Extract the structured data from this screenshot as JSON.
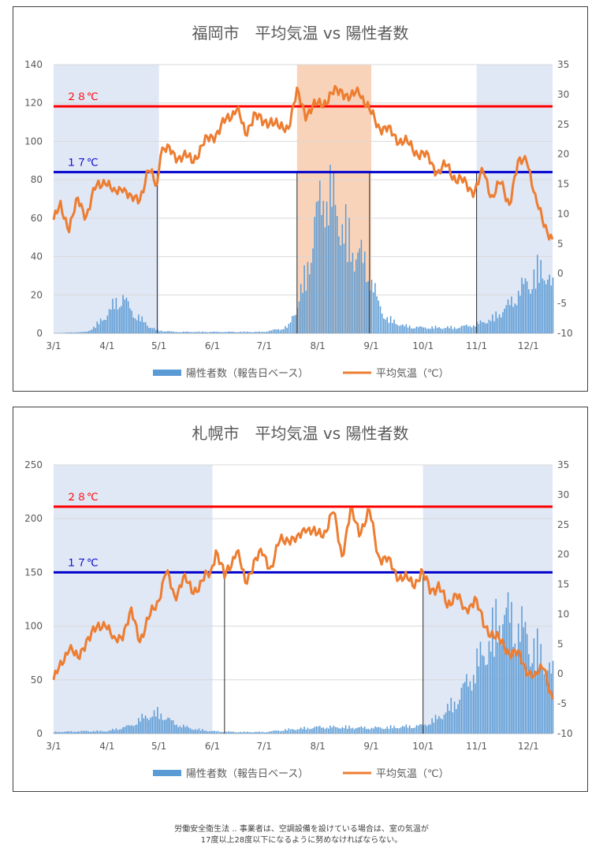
{
  "chart_data": [
    {
      "type": "bar+line",
      "title": "福岡市　平均気温 vs 陽性者数",
      "x_ticks": [
        "3/1",
        "4/1",
        "5/1",
        "6/1",
        "7/1",
        "8/1",
        "9/1",
        "10/1",
        "11/1",
        "12/1"
      ],
      "y_left": {
        "min": 0,
        "max": 140,
        "step": 20
      },
      "y_right": {
        "min": -10,
        "max": 35,
        "step": 5
      },
      "legend": [
        {
          "label": "陽性者数（報告日ベース）",
          "color": "#5b9bd5",
          "kind": "bar"
        },
        {
          "label": "平均気温（℃）",
          "color": "#ed7d31",
          "kind": "line"
        }
      ],
      "reference_lines": [
        {
          "label": "２８℃",
          "temperature": 28,
          "color": "#ff0000"
        },
        {
          "label": "１７℃",
          "temperature": 17,
          "color": "#0000cc"
        }
      ],
      "shaded_periods": [
        {
          "from": "3/1",
          "to": "4/30",
          "color": "#dae3f3"
        },
        {
          "from": "7/20",
          "to": "8/31",
          "color": "#f8cbad"
        },
        {
          "from": "11/1",
          "to": "12/15",
          "color": "#dae3f3"
        }
      ],
      "period_markers": [
        "4/30",
        "7/20",
        "8/31",
        "11/1"
      ],
      "temperature_series": {
        "name": "平均気温（℃）",
        "dates": [
          "3/1",
          "3/5",
          "3/10",
          "3/15",
          "3/20",
          "3/25",
          "3/31",
          "4/5",
          "4/10",
          "4/15",
          "4/20",
          "4/25",
          "4/30",
          "5/2",
          "5/10",
          "5/20",
          "5/31",
          "6/5",
          "6/10",
          "6/15",
          "6/20",
          "6/25",
          "6/30",
          "7/5",
          "7/10",
          "7/15",
          "7/20",
          "7/25",
          "7/31",
          "8/5",
          "8/10",
          "8/15",
          "8/20",
          "8/25",
          "8/31",
          "9/5",
          "9/10",
          "9/15",
          "9/20",
          "9/25",
          "9/30",
          "10/5",
          "10/10",
          "10/15",
          "10/20",
          "10/25",
          "10/31",
          "11/5",
          "11/10",
          "11/15",
          "11/20",
          "11/25",
          "11/30",
          "12/5",
          "12/10",
          "12/15"
        ],
        "values": [
          9,
          11,
          8,
          12,
          10,
          14,
          16,
          13,
          15,
          12,
          13,
          17,
          15,
          21,
          20,
          19,
          23,
          24,
          26,
          28,
          23,
          27,
          25,
          26,
          24,
          25,
          30,
          27,
          28,
          29,
          30,
          31,
          29,
          31,
          27,
          25,
          24,
          23,
          22,
          21,
          20,
          19,
          17,
          18,
          16,
          15,
          14,
          17,
          13,
          15,
          12,
          18,
          20,
          12,
          9,
          5
        ]
      },
      "cases_series": {
        "name": "陽性者数（報告日ベース）",
        "dates": [
          "3/1",
          "3/20",
          "3/25",
          "3/31",
          "4/5",
          "4/10",
          "4/15",
          "4/20",
          "4/25",
          "4/30",
          "5/10",
          "5/31",
          "6/30",
          "7/10",
          "7/15",
          "7/20",
          "7/25",
          "7/31",
          "8/5",
          "8/10",
          "8/15",
          "8/20",
          "8/25",
          "8/31",
          "9/5",
          "9/10",
          "9/20",
          "9/30",
          "10/10",
          "10/20",
          "10/31",
          "11/5",
          "11/10",
          "11/15",
          "11/20",
          "11/25",
          "11/30",
          "12/5",
          "12/10",
          "12/15"
        ],
        "values": [
          0,
          1,
          5,
          12,
          20,
          25,
          15,
          10,
          5,
          2,
          1,
          1,
          1,
          3,
          5,
          20,
          40,
          80,
          100,
          90,
          75,
          60,
          55,
          40,
          20,
          10,
          5,
          4,
          4,
          4,
          6,
          8,
          10,
          15,
          20,
          28,
          35,
          40,
          45,
          30
        ]
      }
    },
    {
      "type": "bar+line",
      "title": "札幌市　平均気温 vs 陽性者数",
      "x_ticks": [
        "3/1",
        "4/1",
        "5/1",
        "6/1",
        "7/1",
        "8/1",
        "9/1",
        "10/1",
        "11/1",
        "12/1"
      ],
      "y_left": {
        "min": 0,
        "max": 250,
        "step": 50
      },
      "y_right": {
        "min": -10,
        "max": 35,
        "step": 5
      },
      "legend": [
        {
          "label": "陽性者数（報告日ベース）",
          "color": "#5b9bd5",
          "kind": "bar"
        },
        {
          "label": "平均気温（℃）",
          "color": "#ed7d31",
          "kind": "line"
        }
      ],
      "reference_lines": [
        {
          "label": "２８℃",
          "temperature": 28,
          "color": "#ff0000"
        },
        {
          "label": "１７℃",
          "temperature": 17,
          "color": "#0000cc"
        }
      ],
      "shaded_periods": [
        {
          "from": "3/1",
          "to": "5/31",
          "color": "#dae3f3"
        },
        {
          "from": "10/1",
          "to": "12/15",
          "color": "#dae3f3"
        }
      ],
      "period_markers": [
        "6/8",
        "10/1"
      ],
      "temperature_series": {
        "name": "平均気温（℃）",
        "dates": [
          "3/1",
          "3/5",
          "3/10",
          "3/15",
          "3/20",
          "3/25",
          "3/31",
          "4/5",
          "4/10",
          "4/15",
          "4/20",
          "4/25",
          "4/30",
          "5/5",
          "5/10",
          "5/15",
          "5/20",
          "5/25",
          "5/31",
          "6/3",
          "6/8",
          "6/15",
          "6/20",
          "6/25",
          "6/30",
          "7/5",
          "7/10",
          "7/15",
          "7/20",
          "7/25",
          "7/31",
          "8/5",
          "8/10",
          "8/15",
          "8/20",
          "8/25",
          "8/31",
          "9/5",
          "9/10",
          "9/15",
          "9/20",
          "9/25",
          "9/30",
          "10/5",
          "10/10",
          "10/15",
          "10/20",
          "10/25",
          "10/31",
          "11/5",
          "11/10",
          "11/15",
          "11/20",
          "11/25",
          "11/30",
          "12/5",
          "12/10",
          "12/15"
        ],
        "values": [
          -1,
          1,
          5,
          2,
          6,
          7,
          9,
          5,
          7,
          10,
          6,
          9,
          12,
          17,
          13,
          16,
          14,
          15,
          17,
          21,
          16,
          21,
          15,
          19,
          20,
          18,
          22,
          23,
          22,
          25,
          23,
          24,
          27,
          20,
          27,
          24,
          27,
          20,
          19,
          17,
          16,
          15,
          17,
          14,
          15,
          11,
          14,
          10,
          13,
          8,
          7,
          5,
          4,
          3,
          1,
          -1,
          2,
          -5
        ]
      },
      "cases_series": {
        "name": "陽性者数（報告日ベース）",
        "dates": [
          "3/1",
          "3/20",
          "4/1",
          "4/15",
          "4/20",
          "4/25",
          "4/30",
          "5/5",
          "5/10",
          "5/20",
          "5/31",
          "6/15",
          "7/1",
          "7/15",
          "8/1",
          "8/15",
          "9/1",
          "9/15",
          "10/1",
          "10/10",
          "10/20",
          "10/31",
          "11/5",
          "11/10",
          "11/15",
          "11/20",
          "11/25",
          "11/30",
          "12/5",
          "12/10",
          "12/15"
        ],
        "values": [
          2,
          3,
          3,
          10,
          18,
          22,
          25,
          20,
          12,
          6,
          3,
          2,
          2,
          5,
          8,
          8,
          7,
          8,
          10,
          20,
          40,
          80,
          100,
          120,
          150,
          140,
          130,
          120,
          100,
          90,
          70
        ]
      }
    }
  ],
  "footer": {
    "line1": "労働安全衛生法 .. 事業者は、空調設備を設けている場合は、室の気温が",
    "line2": "17度以上28度以下になるように努めなければならない。"
  }
}
